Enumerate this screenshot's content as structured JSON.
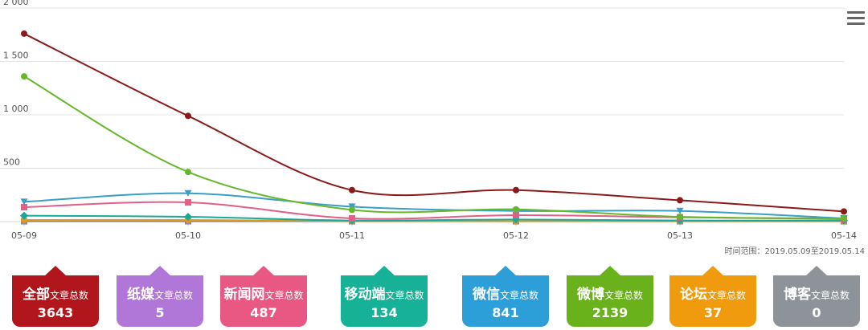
{
  "chart_data": {
    "type": "line",
    "categories": [
      "05-09",
      "05-10",
      "05-11",
      "05-12",
      "05-13",
      "05-14"
    ],
    "ylim": [
      0,
      2000
    ],
    "yticks": [
      0,
      500,
      1000,
      1500,
      2000
    ],
    "ytick_labels": [
      "",
      "500",
      "1 000",
      "1 500",
      "2 000"
    ],
    "grid": true,
    "legend": "none",
    "series": [
      {
        "color": "#8b1a1a",
        "marker": "circle",
        "values": [
          1760,
          990,
          295,
          295,
          200,
          95
        ]
      },
      {
        "color": "#66b82a",
        "marker": "circle",
        "values": [
          1360,
          465,
          110,
          115,
          45,
          30
        ]
      },
      {
        "color": "#3a9fc6",
        "marker": "triangle-down",
        "values": [
          185,
          265,
          140,
          100,
          100,
          30
        ]
      },
      {
        "color": "#e06088",
        "marker": "square",
        "values": [
          135,
          180,
          30,
          60,
          40,
          25
        ]
      },
      {
        "color": "#1aa89a",
        "marker": "diamond",
        "values": [
          55,
          45,
          10,
          20,
          10,
          10
        ]
      },
      {
        "color": "#e09820",
        "marker": "circle",
        "values": [
          15,
          15,
          5,
          5,
          5,
          5
        ]
      },
      {
        "color": "#8c8c8c",
        "marker": "square",
        "values": [
          3,
          3,
          3,
          3,
          3,
          3
        ]
      }
    ]
  },
  "menu_icon": "hamburger-menu-icon",
  "time_range": "时间范围：2019.05.09至2019.05.14",
  "cards": [
    {
      "name": "全部",
      "suffix": "文章总数",
      "count": "3643",
      "color": "#b0161c"
    },
    {
      "name": "纸媒",
      "suffix": "文章总数",
      "count": "5",
      "color": "#b076d8"
    },
    {
      "name": "新闻网",
      "suffix": "文章总数",
      "count": "487",
      "color": "#e85882"
    },
    {
      "name": "移动端",
      "suffix": "文章总数",
      "count": "134",
      "color": "#16b196"
    },
    {
      "name": "微信",
      "suffix": "文章总数",
      "count": "841",
      "color": "#2d9fd8"
    },
    {
      "name": "微博",
      "suffix": "文章总数",
      "count": "2139",
      "color": "#69b21b"
    },
    {
      "name": "论坛",
      "suffix": "文章总数",
      "count": "37",
      "color": "#f09a0e"
    },
    {
      "name": "博客",
      "suffix": "文章总数",
      "count": "0",
      "color": "#8e9399"
    }
  ]
}
